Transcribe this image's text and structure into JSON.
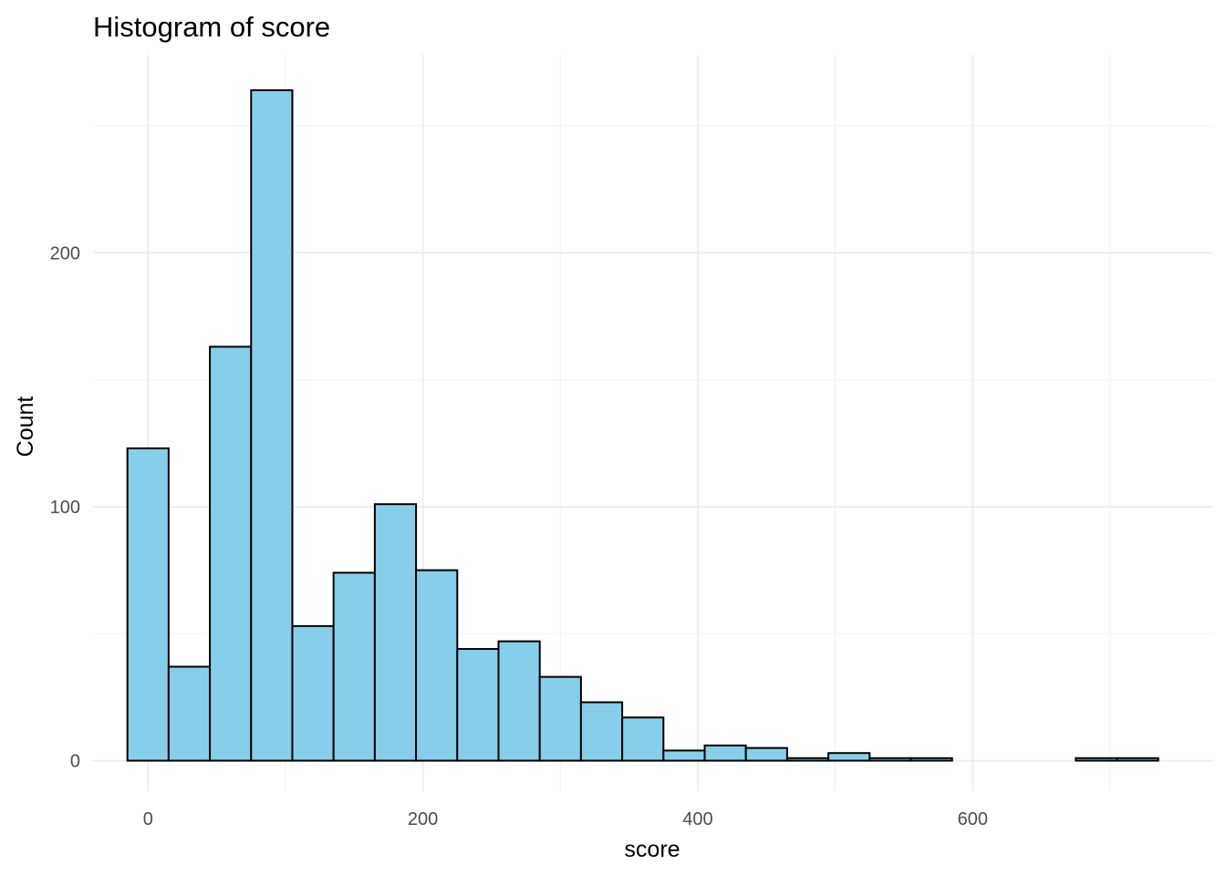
{
  "chart_data": {
    "type": "bar",
    "title": "Histogram of score",
    "xlabel": "score",
    "ylabel": "Count",
    "xlim": [
      -40,
      775
    ],
    "ylim": [
      -12,
      278
    ],
    "x_ticks": [
      0,
      200,
      400,
      600
    ],
    "x_tick_labels": [
      "0",
      "200",
      "400",
      "600"
    ],
    "y_ticks": [
      0,
      100,
      200
    ],
    "y_tick_labels": [
      "0",
      "100",
      "200"
    ],
    "grid": true,
    "bin_width": 30,
    "bins": [
      {
        "start": -15,
        "end": 15,
        "count": 123
      },
      {
        "start": 15,
        "end": 45,
        "count": 37
      },
      {
        "start": 45,
        "end": 75,
        "count": 163
      },
      {
        "start": 75,
        "end": 105,
        "count": 264
      },
      {
        "start": 105,
        "end": 135,
        "count": 53
      },
      {
        "start": 135,
        "end": 165,
        "count": 74
      },
      {
        "start": 165,
        "end": 195,
        "count": 101
      },
      {
        "start": 195,
        "end": 225,
        "count": 75
      },
      {
        "start": 225,
        "end": 255,
        "count": 44
      },
      {
        "start": 255,
        "end": 285,
        "count": 47
      },
      {
        "start": 285,
        "end": 315,
        "count": 33
      },
      {
        "start": 315,
        "end": 345,
        "count": 23
      },
      {
        "start": 345,
        "end": 375,
        "count": 17
      },
      {
        "start": 375,
        "end": 405,
        "count": 4
      },
      {
        "start": 405,
        "end": 435,
        "count": 6
      },
      {
        "start": 435,
        "end": 465,
        "count": 5
      },
      {
        "start": 465,
        "end": 495,
        "count": 1
      },
      {
        "start": 495,
        "end": 525,
        "count": 3
      },
      {
        "start": 525,
        "end": 555,
        "count": 1
      },
      {
        "start": 555,
        "end": 585,
        "count": 1
      },
      {
        "start": 585,
        "end": 615,
        "count": 0
      },
      {
        "start": 615,
        "end": 645,
        "count": 0
      },
      {
        "start": 645,
        "end": 675,
        "count": 0
      },
      {
        "start": 675,
        "end": 705,
        "count": 1
      },
      {
        "start": 705,
        "end": 735,
        "count": 1
      }
    ],
    "colors": {
      "fill": "#87ceeb",
      "outline": "#000000",
      "grid": "#ebebeb"
    }
  }
}
